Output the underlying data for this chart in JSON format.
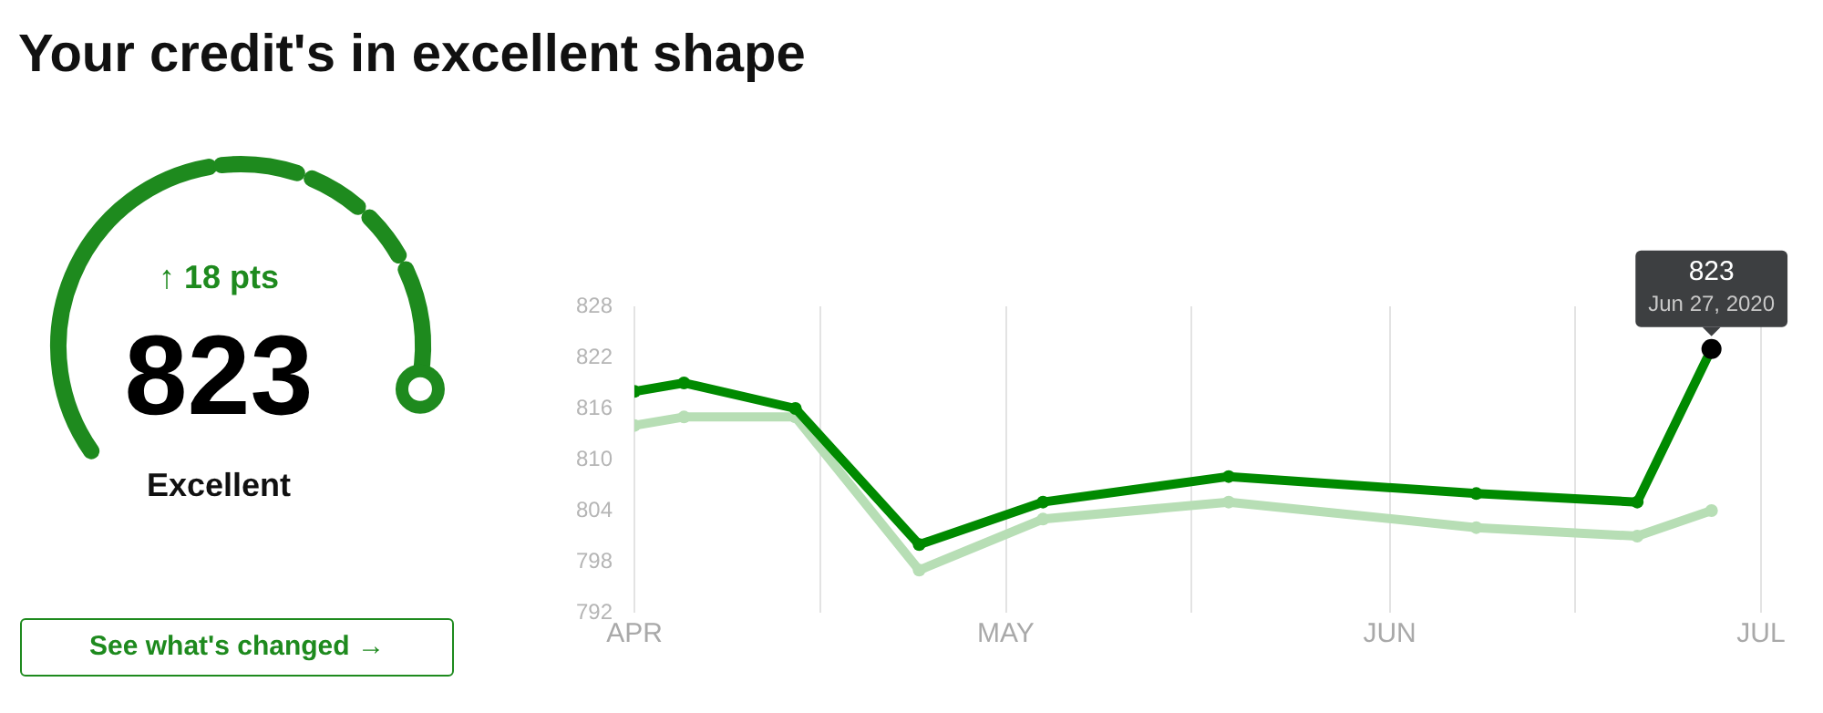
{
  "chart_data": [
    {
      "type": "other",
      "title": "Your credit's in excellent shape",
      "annotations": [
        "↑ 18 pts",
        "823",
        "Excellent",
        "See what's changed →"
      ]
    },
    {
      "type": "line",
      "x": [
        "2020-04-01",
        "2020-04-05",
        "2020-04-14",
        "2020-04-24",
        "2020-05-04",
        "2020-05-19",
        "2020-06-08",
        "2020-06-21",
        "2020-06-27"
      ],
      "series": [
        {
          "color": "#008a00",
          "values": [
            818,
            819,
            816,
            800,
            805,
            808,
            806,
            805,
            823
          ]
        },
        {
          "color": "#b7deb5",
          "values": [
            814,
            815,
            815,
            797,
            803,
            805,
            802,
            801,
            804
          ]
        }
      ],
      "xlim": [
        "2020-04-01",
        "2020-07-01"
      ],
      "xticks": [
        {
          "value": "2020-04-01",
          "label": "APR"
        },
        {
          "value": "2020-04-16",
          "label": null
        },
        {
          "value": "2020-05-01",
          "label": "MAY"
        },
        {
          "value": "2020-05-16",
          "label": null
        },
        {
          "value": "2020-06-01",
          "label": "JUN"
        },
        {
          "value": "2020-06-16",
          "label": null
        },
        {
          "value": "2020-07-01",
          "label": "JUL"
        }
      ],
      "ylim": [
        792,
        828
      ],
      "yticks": [
        792,
        798,
        804,
        810,
        816,
        822,
        828
      ],
      "grid": "x",
      "legend": false,
      "marker": "circle",
      "line_style": "solid",
      "annotations": [
        {
          "text": "823",
          "x": "2020-06-27",
          "y": 823
        },
        {
          "text": "Jun 27, 2020",
          "x": "2020-06-27",
          "y": 823
        }
      ]
    }
  ]
}
